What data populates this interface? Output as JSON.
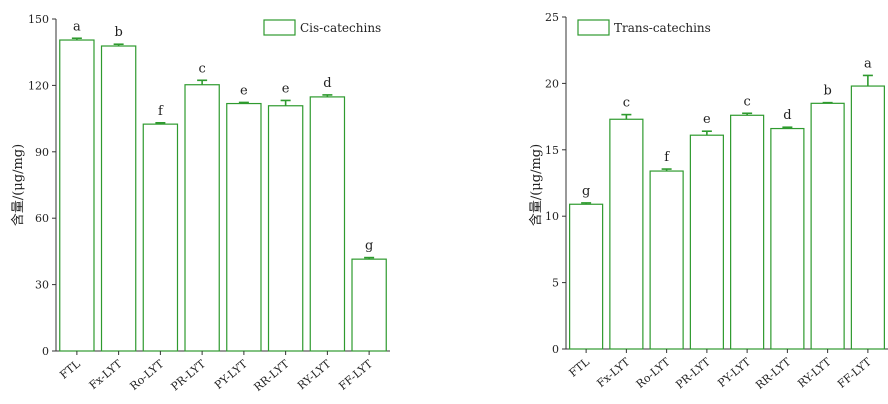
{
  "chart_data": [
    {
      "type": "bar",
      "ylabel": "含量/(μg/mg)",
      "ylim": [
        0,
        150
      ],
      "yticks": [
        0,
        30,
        60,
        90,
        120,
        150
      ],
      "legend": "Cis-catechins",
      "legend_position": "top-right",
      "categories": [
        "FTL",
        "Fx-LYT",
        "Ro-LYT",
        "PR-LYT",
        "PY-LYT",
        "RR-LYT",
        "RY-LYT",
        "FF-LYT"
      ],
      "values": [
        140.5,
        137.8,
        102.5,
        120.3,
        111.8,
        110.8,
        114.8,
        41.5
      ],
      "errors": [
        0.8,
        0.8,
        0.6,
        2.0,
        0.5,
        2.4,
        0.9,
        0.7
      ],
      "letters": [
        "a",
        "b",
        "f",
        "c",
        "e",
        "e",
        "d",
        "g"
      ],
      "color": "#2e9a2e"
    },
    {
      "type": "bar",
      "ylabel": "含量/(μg/mg)",
      "ylim": [
        0,
        25
      ],
      "yticks": [
        0,
        5,
        10,
        15,
        20,
        25
      ],
      "legend": "Trans-catechins",
      "legend_position": "top-left",
      "categories": [
        "FTL",
        "Fx-LYT",
        "Ro-LYT",
        "PR-LYT",
        "PY-LYT",
        "RR-LYT",
        "RY-LYT",
        "FF-LYT"
      ],
      "values": [
        10.9,
        17.3,
        13.4,
        16.1,
        17.6,
        16.6,
        18.5,
        19.8
      ],
      "errors": [
        0.1,
        0.35,
        0.15,
        0.3,
        0.15,
        0.1,
        0.05,
        0.8
      ],
      "letters": [
        "g",
        "c",
        "f",
        "e",
        "c",
        "d",
        "b",
        "a"
      ],
      "color": "#2e9a2e"
    }
  ]
}
